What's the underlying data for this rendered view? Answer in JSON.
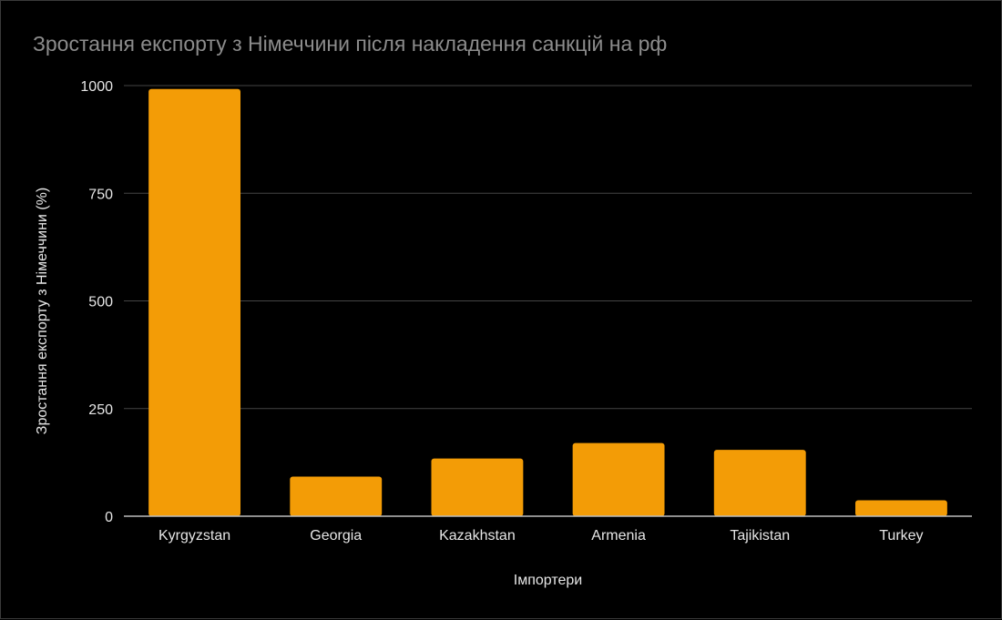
{
  "chart_data": {
    "type": "bar",
    "title": "Зростання експорту з Німеччини після накладення санкцій на рф",
    "xlabel": "Імпортери",
    "ylabel": "Зростання експорту з Німеччини (%)",
    "categories": [
      "Kyrgyzstan",
      "Georgia",
      "Kazakhstan",
      "Armenia",
      "Tajikistan",
      "Turkey"
    ],
    "values": [
      992,
      92,
      134,
      170,
      154,
      37
    ],
    "ylim": [
      0,
      1000
    ],
    "yticks": [
      "0",
      "250",
      "500",
      "750",
      "1000"
    ],
    "grid": true,
    "legend": "none",
    "bar_color": "#f39c06",
    "grid_color": "#444444",
    "axis_color": "#bdbdbd"
  }
}
